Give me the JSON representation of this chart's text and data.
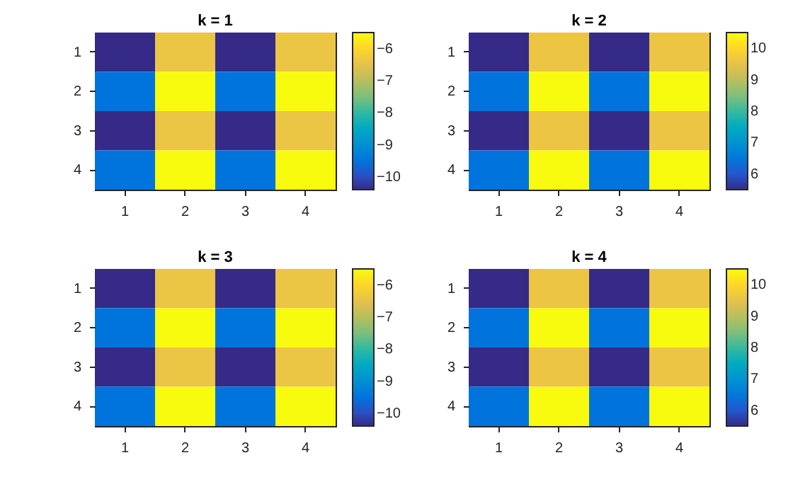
{
  "chart_data": [
    {
      "type": "heatmap",
      "title": "k = 1",
      "categories": [
        "1",
        "2",
        "3",
        "4"
      ],
      "y_categories": [
        "1",
        "2",
        "3",
        "4"
      ],
      "cells": [
        [
          -10.4,
          -6.4,
          -10.4,
          -6.4
        ],
        [
          -9.5,
          -5.5,
          -9.5,
          -5.5
        ],
        [
          -10.4,
          -6.4,
          -10.4,
          -6.4
        ],
        [
          -9.5,
          -5.5,
          -9.5,
          -5.5
        ]
      ],
      "clim": [
        -10.4,
        -5.5
      ],
      "cticks": [
        -10,
        -9,
        -8,
        -7,
        -6
      ]
    },
    {
      "type": "heatmap",
      "title": "k = 2",
      "categories": [
        "1",
        "2",
        "3",
        "4"
      ],
      "y_categories": [
        "1",
        "2",
        "3",
        "4"
      ],
      "cells": [
        [
          5.5,
          9.6,
          5.5,
          9.6
        ],
        [
          6.4,
          10.5,
          6.4,
          10.5
        ],
        [
          5.5,
          9.6,
          5.5,
          9.6
        ],
        [
          6.4,
          10.5,
          6.4,
          10.5
        ]
      ],
      "clim": [
        5.5,
        10.5
      ],
      "cticks": [
        6,
        7,
        8,
        9,
        10
      ]
    },
    {
      "type": "heatmap",
      "title": "k = 3",
      "categories": [
        "1",
        "2",
        "3",
        "4"
      ],
      "y_categories": [
        "1",
        "2",
        "3",
        "4"
      ],
      "cells": [
        [
          -10.4,
          -6.4,
          -10.4,
          -6.4
        ],
        [
          -9.5,
          -5.5,
          -9.5,
          -5.5
        ],
        [
          -10.4,
          -6.4,
          -10.4,
          -6.4
        ],
        [
          -9.5,
          -5.5,
          -9.5,
          -5.5
        ]
      ],
      "clim": [
        -10.4,
        -5.5
      ],
      "cticks": [
        -10,
        -9,
        -8,
        -7,
        -6
      ]
    },
    {
      "type": "heatmap",
      "title": "k = 4",
      "categories": [
        "1",
        "2",
        "3",
        "4"
      ],
      "y_categories": [
        "1",
        "2",
        "3",
        "4"
      ],
      "cells": [
        [
          5.5,
          9.6,
          5.5,
          9.6
        ],
        [
          6.4,
          10.5,
          6.4,
          10.5
        ],
        [
          5.5,
          9.6,
          5.5,
          9.6
        ],
        [
          6.4,
          10.5,
          6.4,
          10.5
        ]
      ],
      "clim": [
        5.5,
        10.5
      ],
      "cticks": [
        6,
        7,
        8,
        9,
        10
      ]
    }
  ]
}
